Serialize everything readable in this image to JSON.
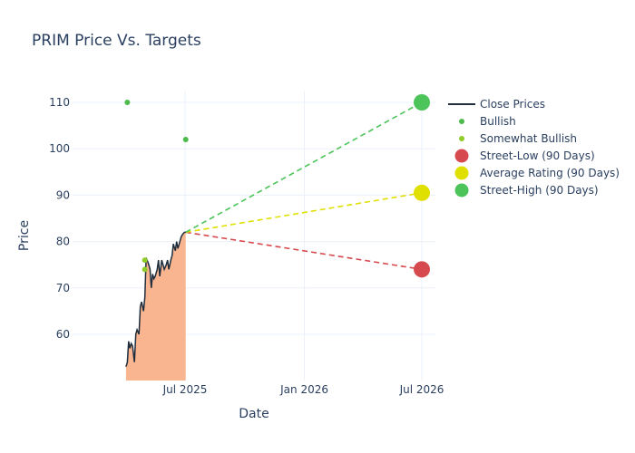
{
  "chart_data": {
    "type": "line",
    "title": "PRIM Price Vs. Targets",
    "xlabel": "Date",
    "ylabel": "Price",
    "x_ticks": [
      "Jul 2025",
      "Jan 2026",
      "Jul 2026"
    ],
    "y_ticks": [
      60,
      70,
      80,
      90,
      100,
      110
    ],
    "ylim": [
      50,
      113
    ],
    "grid": true,
    "legend_position": "right",
    "close_prices": {
      "name": "Close Prices",
      "color": "#1f2d3d",
      "fill_color": "#f9b58f",
      "x": [
        "2025-04-01",
        "2025-04-03",
        "2025-04-05",
        "2025-04-07",
        "2025-04-09",
        "2025-04-11",
        "2025-04-14",
        "2025-04-16",
        "2025-04-18",
        "2025-04-21",
        "2025-04-23",
        "2025-04-25",
        "2025-04-28",
        "2025-04-30",
        "2025-05-02",
        "2025-05-05",
        "2025-05-06",
        "2025-05-08",
        "2025-05-10",
        "2025-05-12",
        "2025-05-14",
        "2025-05-16",
        "2025-05-19",
        "2025-05-21",
        "2025-05-23",
        "2025-05-26",
        "2025-05-28",
        "2025-05-30",
        "2025-06-02",
        "2025-06-04",
        "2025-06-06",
        "2025-06-09",
        "2025-06-11",
        "2025-06-13",
        "2025-06-16",
        "2025-06-18",
        "2025-06-20",
        "2025-06-23",
        "2025-06-25",
        "2025-06-27",
        "2025-06-30",
        "2025-07-02"
      ],
      "y": [
        53,
        54,
        58.5,
        57,
        58,
        57.5,
        54,
        60,
        61,
        60,
        66,
        67,
        65,
        68,
        76.5,
        75.5,
        75,
        74,
        70,
        73,
        72,
        72.5,
        74,
        76,
        72.5,
        76,
        75,
        74,
        75,
        76,
        74,
        76,
        77,
        79.5,
        78,
        80,
        78.5,
        80,
        81,
        81.5,
        82,
        82
      ]
    },
    "bullish": {
      "name": "Bullish",
      "color": "#4cbb4c",
      "points": [
        {
          "x": "2025-04-03",
          "y": 110
        },
        {
          "x": "2025-07-02",
          "y": 102
        }
      ]
    },
    "somewhat_bullish": {
      "name": "Somewhat Bullish",
      "color": "#8fcc29",
      "points": [
        {
          "x": "2025-04-30",
          "y": 76
        },
        {
          "x": "2025-04-30",
          "y": 74
        }
      ]
    },
    "targets": [
      {
        "name": "Street-Low (90 Days)",
        "color": "#d6494f",
        "from": {
          "x": "2025-07-02",
          "y": 82
        },
        "to": {
          "x": "2026-07-01",
          "y": 74
        }
      },
      {
        "name": "Average Rating (90 Days)",
        "color": "#e0e000",
        "from": {
          "x": "2025-07-02",
          "y": 82
        },
        "to": {
          "x": "2026-07-01",
          "y": 90.5
        }
      },
      {
        "name": "Street-High (90 Days)",
        "color": "#4cc45a",
        "from": {
          "x": "2025-07-02",
          "y": 82
        },
        "to": {
          "x": "2026-07-01",
          "y": 110
        }
      }
    ],
    "legend": [
      "Close Prices",
      "Bullish",
      "Somewhat Bullish",
      "Street-Low (90 Days)",
      "Average Rating (90 Days)",
      "Street-High (90 Days)"
    ]
  }
}
